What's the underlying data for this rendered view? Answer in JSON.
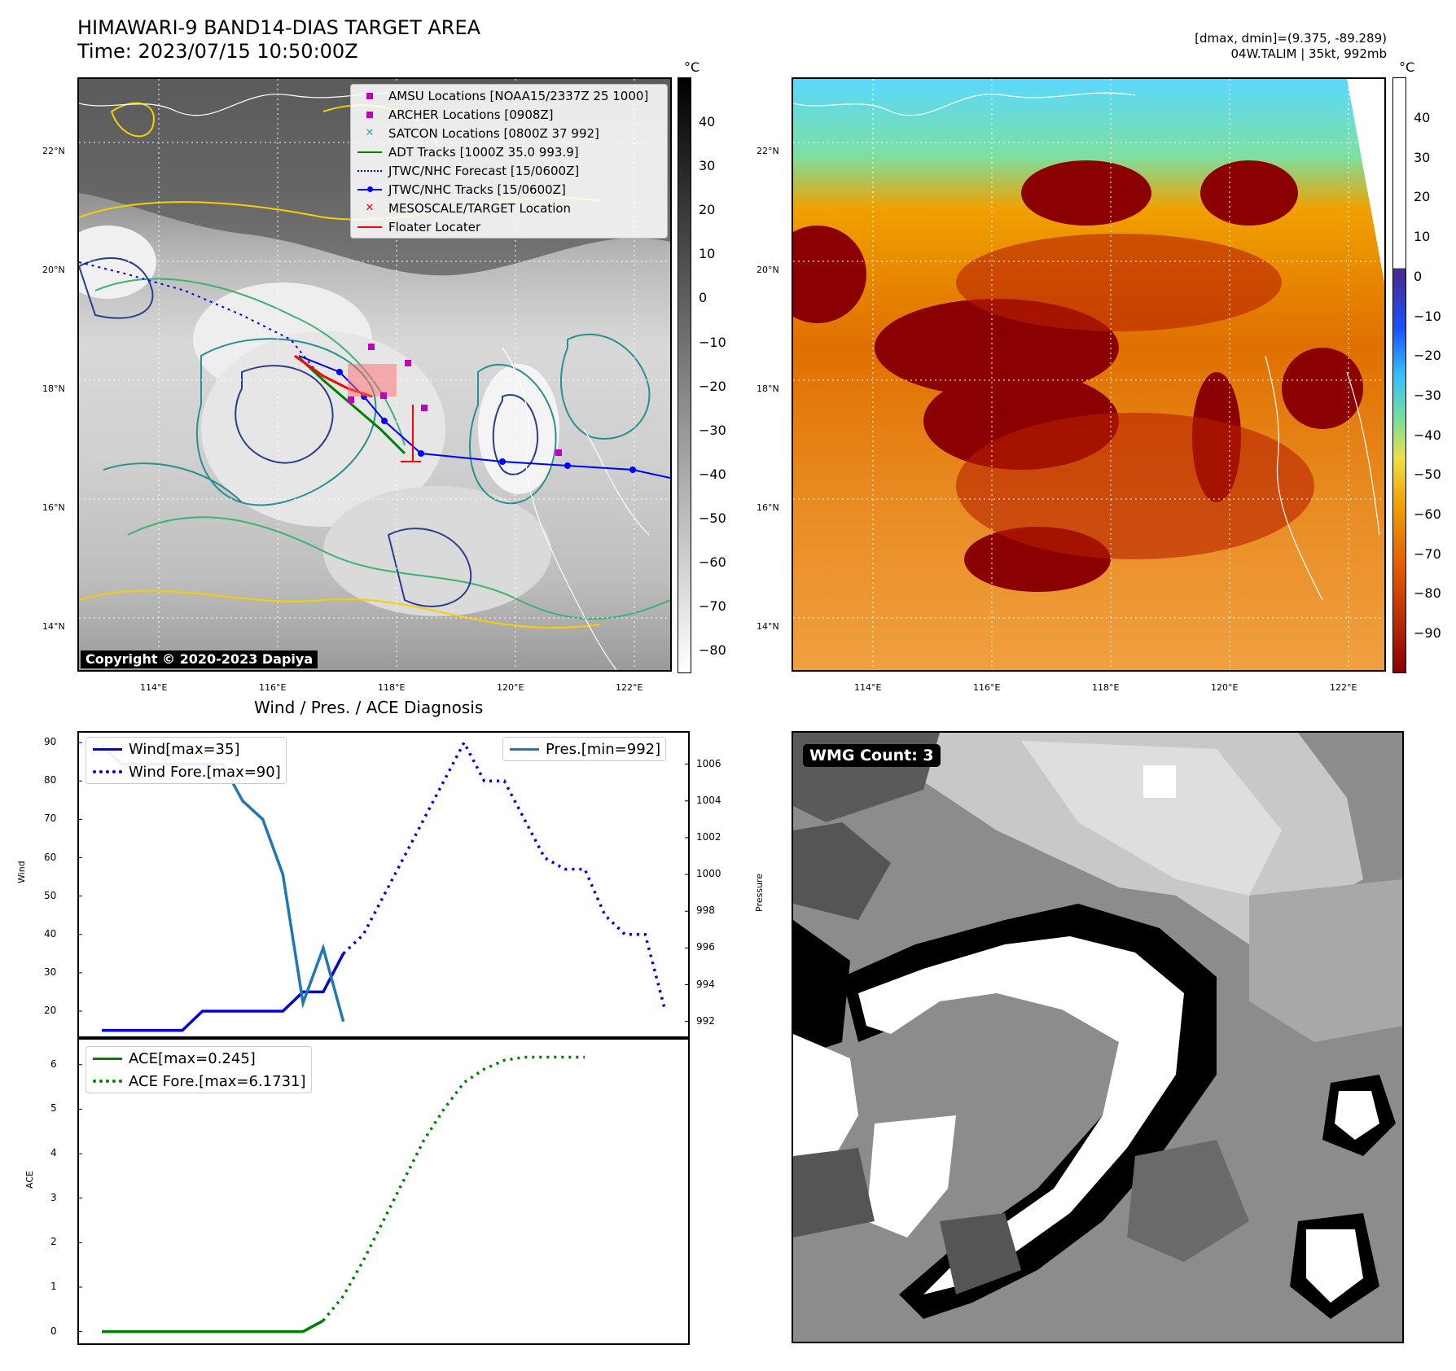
{
  "header": {
    "title_line1": "HIMAWARI-9 BAND14-DIAS TARGET AREA",
    "title_line2": "Time: 2023/07/15 10:50:00Z",
    "dmax_dmin": "[dmax, dmin]=(9.375, -89.289)",
    "storm_info": "04W.TALIM | 35kt, 992mb"
  },
  "map_left": {
    "lat_labels": [
      "22°N",
      "20°N",
      "18°N",
      "16°N",
      "14°N"
    ],
    "lon_labels": [
      "114°E",
      "116°E",
      "118°E",
      "120°E",
      "122°E"
    ],
    "copyright": "Copyright © 2020-2023 Dapiya",
    "legend": [
      {
        "label": "AMSU Locations [NOAA15/2337Z 25 1000]",
        "color": "#c000c0",
        "marker": "square"
      },
      {
        "label": "ARCHER Locations [0908Z]",
        "color": "#c000c0",
        "marker": "square"
      },
      {
        "label": "SATCON Locations [0800Z 37 992]",
        "color": "#20b0b0",
        "marker": "x"
      },
      {
        "label": "ADT Tracks [1000Z 35.0 993.9]",
        "color": "#008000",
        "marker": "line"
      },
      {
        "label": "JTWC/NHC Forecast [15/0600Z]",
        "color": "#0000ff",
        "marker": "dotted"
      },
      {
        "label": "JTWC/NHC Tracks [15/0600Z]",
        "color": "#0000ff",
        "marker": "line-dot"
      },
      {
        "label": "MESOSCALE/TARGET Location",
        "color": "#ff0000",
        "marker": "x"
      },
      {
        "label": "Floater Locater",
        "color": "#ff0000",
        "marker": "line"
      }
    ],
    "colorbar_unit": "°C",
    "colorbar_ticks": [
      "40",
      "30",
      "20",
      "10",
      "0",
      "−10",
      "−20",
      "−30",
      "−40",
      "−50",
      "−60",
      "−70",
      "−80"
    ]
  },
  "map_right": {
    "lat_labels": [
      "22°N",
      "20°N",
      "18°N",
      "16°N",
      "14°N"
    ],
    "lon_labels": [
      "114°E",
      "116°E",
      "118°E",
      "120°E",
      "122°E"
    ],
    "colorbar_unit": "°C",
    "colorbar_ticks": [
      "40",
      "30",
      "20",
      "10",
      "0",
      "−10",
      "−20",
      "−30",
      "−40",
      "−50",
      "−60",
      "−70",
      "−80",
      "−90"
    ]
  },
  "wmg": {
    "badge": "WMG Count: 3"
  },
  "chart_data": [
    {
      "type": "line",
      "title": "Wind / Pres. / ACE Diagnosis",
      "ylabel": "Wind",
      "y2label": "Pressure",
      "ylim": [
        13,
        93
      ],
      "y2lim": [
        991.1,
        1007.8
      ],
      "yticks": [
        "90",
        "80",
        "70",
        "60",
        "50",
        "40",
        "30",
        "20"
      ],
      "y2ticks": [
        "1006",
        "1004",
        "1002",
        "1000",
        "998",
        "996",
        "994",
        "992"
      ],
      "legend_left": [
        "Wind[max=35]",
        "Wind Fore.[max=90]"
      ],
      "legend_right": [
        "Pres.[min=992]"
      ],
      "series": [
        {
          "name": "Wind[max=35]",
          "axis": "left",
          "color": "#0000e0",
          "style": "solid",
          "x": [
            0,
            1,
            2,
            3,
            4,
            5,
            6,
            7,
            8,
            9,
            10,
            11,
            12
          ],
          "y": [
            15,
            15,
            15,
            15,
            15,
            20,
            20,
            20,
            20,
            20,
            25,
            25,
            35
          ]
        },
        {
          "name": "Wind Fore.[max=90]",
          "axis": "left",
          "color": "#0000e0",
          "style": "dotted",
          "x": [
            12,
            13,
            14,
            15,
            16,
            17,
            18,
            19,
            20,
            21,
            22,
            23,
            24,
            25,
            26,
            27,
            28
          ],
          "y": [
            35,
            40,
            50,
            60,
            70,
            80,
            90,
            80,
            80,
            70,
            60,
            57,
            57,
            45,
            40,
            40,
            20
          ]
        },
        {
          "name": "Pres.[min=992]",
          "axis": "right",
          "color": "#1f77b4",
          "style": "solid",
          "x": [
            0,
            1,
            2,
            3,
            4,
            5,
            6,
            7,
            8,
            9,
            10,
            11,
            12
          ],
          "y": [
            1007,
            1006,
            1006,
            1006,
            1006,
            1006,
            1006,
            1004,
            1003,
            1000,
            993,
            996,
            992
          ]
        }
      ]
    },
    {
      "type": "line",
      "ylabel": "ACE",
      "ylim": [
        -0.3,
        6.6
      ],
      "yticks": [
        "6",
        "5",
        "4",
        "3",
        "2",
        "1",
        "0"
      ],
      "legend": [
        "ACE[max=0.245]",
        "ACE Fore.[max=6.1731]"
      ],
      "series": [
        {
          "name": "ACE[max=0.245]",
          "color": "#008000",
          "style": "solid",
          "x": [
            0,
            1,
            2,
            3,
            4,
            5,
            6,
            7,
            8,
            9,
            10,
            11
          ],
          "y": [
            0,
            0,
            0,
            0,
            0,
            0,
            0,
            0,
            0,
            0,
            0,
            0.245
          ]
        },
        {
          "name": "ACE Fore.[max=6.1731]",
          "color": "#008000",
          "style": "dotted",
          "x": [
            11,
            12,
            13,
            14,
            15,
            16,
            17,
            18,
            19,
            20,
            21,
            22,
            23,
            24
          ],
          "y": [
            0.245,
            0.8,
            1.6,
            2.5,
            3.4,
            4.3,
            5.0,
            5.6,
            5.9,
            6.1,
            6.17,
            6.17,
            6.17,
            6.17
          ]
        }
      ]
    }
  ]
}
